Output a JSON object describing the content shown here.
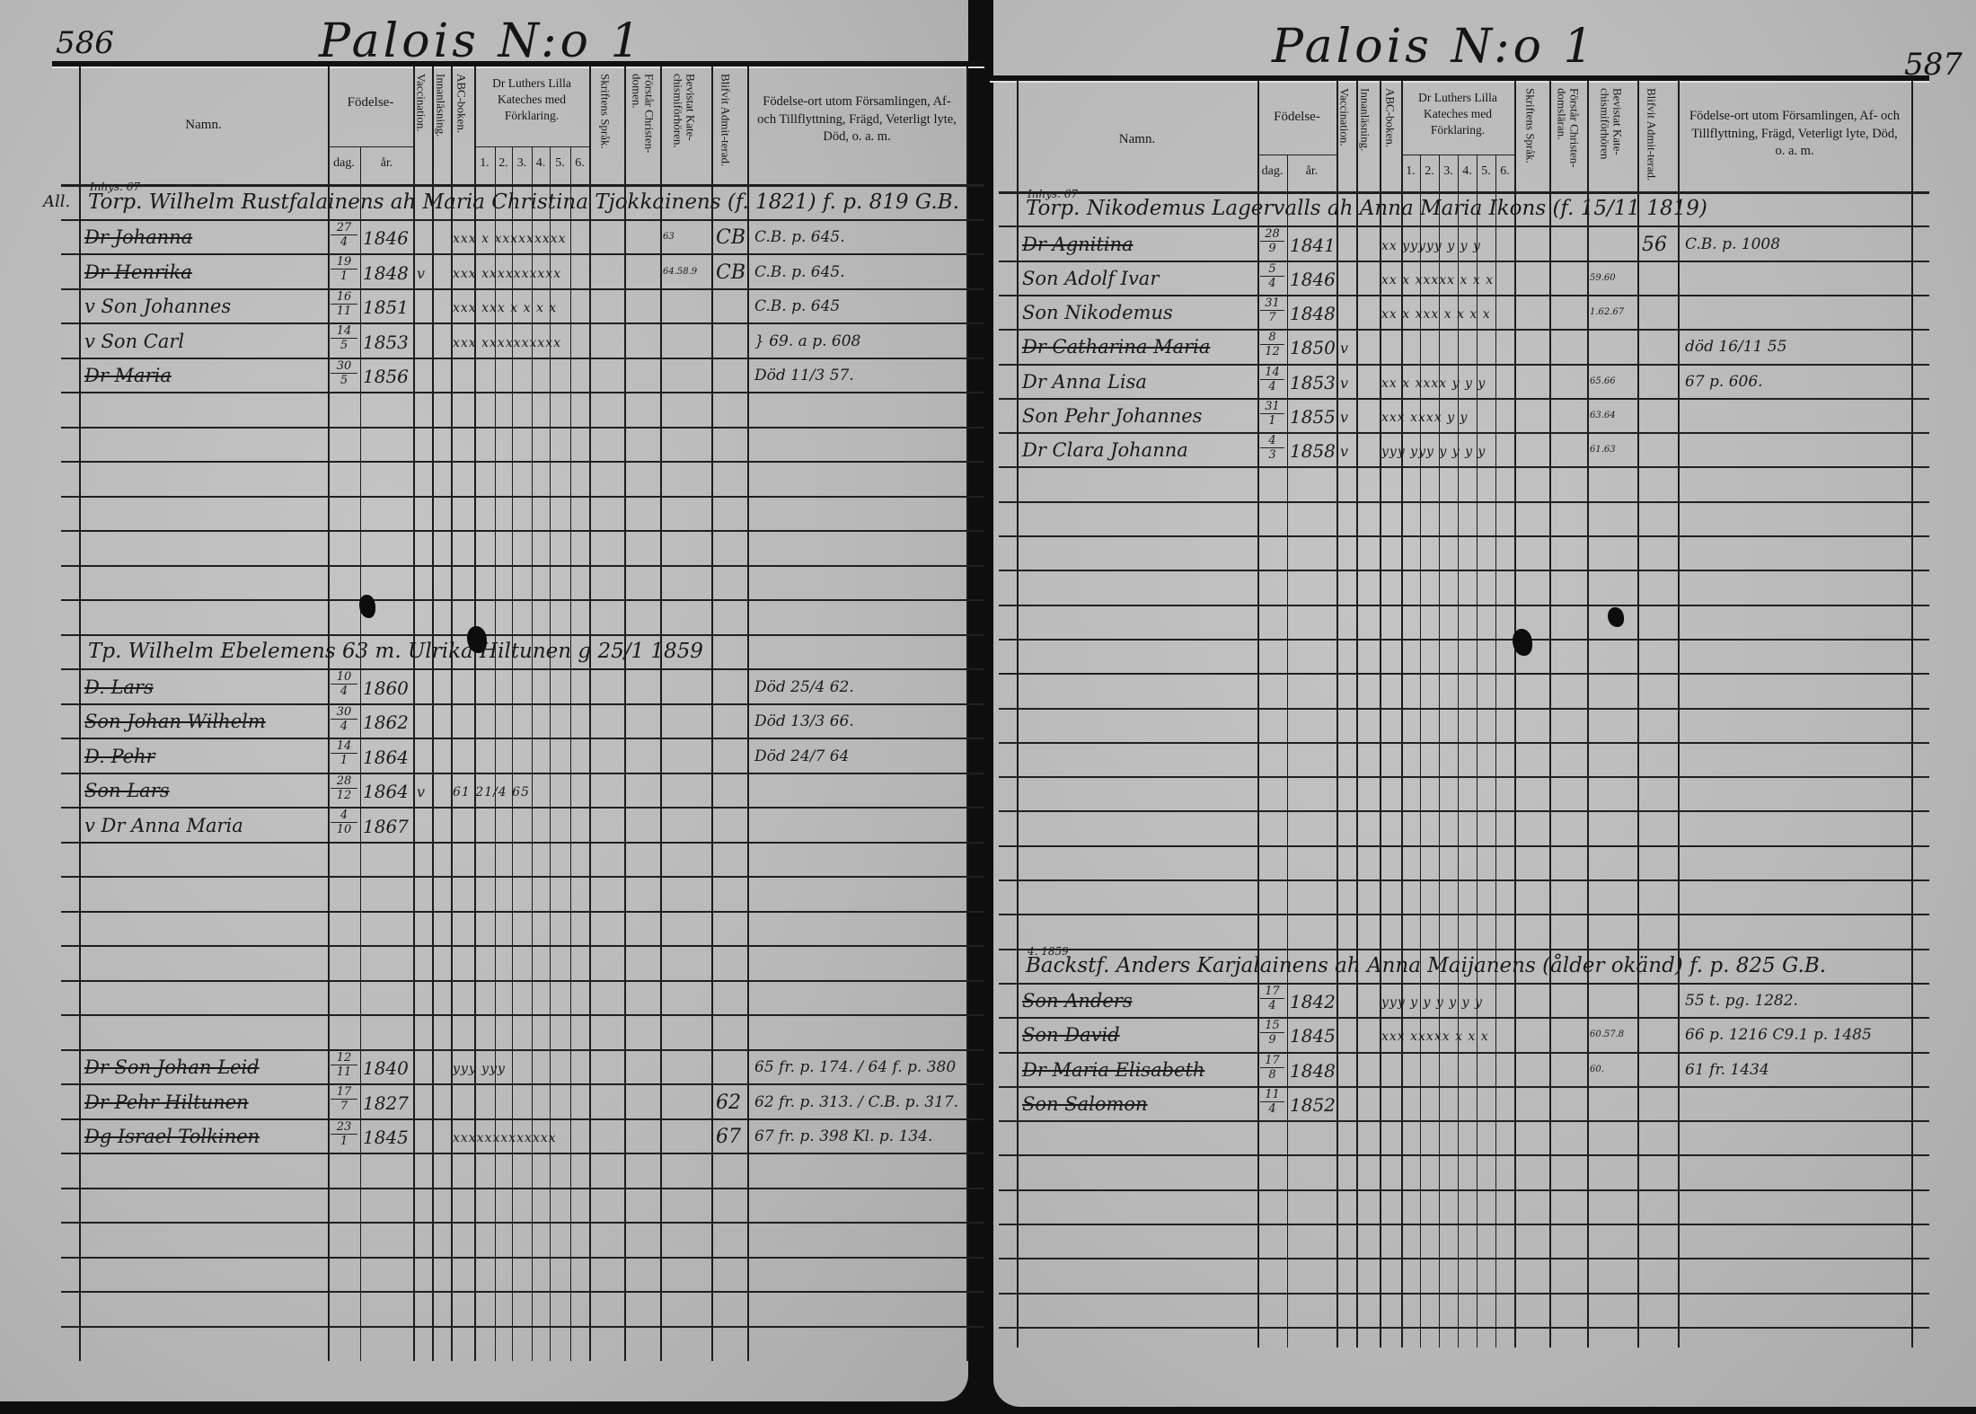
{
  "document": {
    "type": "Parish household examination register (husförhörslängd)",
    "accent_color": "#1a1a1a",
    "paper_color": "#bcbcbc"
  },
  "pages": [
    {
      "page_number": "586",
      "title": "Palois N:o 1",
      "headers": {
        "namn": "Namn.",
        "fodelse": "Födelse-",
        "dag": "dag.",
        "ar": "år.",
        "vaccination": "Vaccination.",
        "innanlasning": "Innanläsning.",
        "abc": "ABC-boken.",
        "luther": "Dr Luthers Lilla Kateches med Förklaring.",
        "luther_nums": [
          "1.",
          "2.",
          "3.",
          "4.",
          "5.",
          "6."
        ],
        "skriftens": "Skriftens Språk.",
        "forstar": "Förstår Christen-domen.",
        "bevistat": "Bevistat Kate-chismiförhören.",
        "admitterad": "Blifvit Admit-terad.",
        "fodelseort": "Födelse-ort utom Församlingen, Af- och Tillflyttning, Frägd, Veterligt lyte, Död, o. a. m."
      },
      "households": [
        {
          "note": "Inhys. 67",
          "prefix": "All.",
          "text": "Torp. Wilhelm Rustfalainens ah Maria Christina Tjokkainens (f. 1821) f. p. 819 G.B.",
          "struck_prefix": "Torp."
        },
        {
          "note": "",
          "prefix": "",
          "text": "Tp. Wilhelm Ebelemens 63 m. Ulrika Hiltunen g 25/1 1859",
          "struck_prefix": ""
        }
      ],
      "entries": [
        {
          "name": "Dr Johanna",
          "struck": true,
          "day": "27",
          "month": "4",
          "year": "1846",
          "vacc": "",
          "marks": "xxx x xxxxxxxxx",
          "bevistat": "63",
          "admit": "CB",
          "notes": "C.B. p. 645."
        },
        {
          "name": "Dr Henrika",
          "struck": true,
          "day": "19",
          "month": "1",
          "year": "1848",
          "vacc": "v",
          "marks": "xxx xxxxxxxxxx",
          "bevistat": "64.58.9",
          "admit": "CB",
          "notes": "C.B. p. 645."
        },
        {
          "name": "v Son Johannes",
          "struck": false,
          "day": "16",
          "month": "11",
          "year": "1851",
          "vacc": "",
          "marks": "xxx xxx x x x x",
          "bevistat": "",
          "admit": "",
          "notes": "C.B. p. 645"
        },
        {
          "name": "v Son Carl",
          "struck": false,
          "day": "14",
          "month": "5",
          "year": "1853",
          "vacc": "",
          "marks": "xxx xxxxxxxxxx",
          "bevistat": "",
          "admit": "",
          "notes": "} 69. a p. 608"
        },
        {
          "name": "Dr Maria",
          "struck": true,
          "day": "30",
          "month": "5",
          "year": "1856",
          "vacc": "",
          "marks": "",
          "bevistat": "",
          "admit": "",
          "notes": "Död 11/3 57."
        },
        {
          "name": "D. Lars",
          "struck": true,
          "day": "10",
          "month": "4",
          "year": "1860",
          "vacc": "",
          "marks": "",
          "bevistat": "",
          "admit": "",
          "notes": "Död 25/4 62."
        },
        {
          "name": "Son Johan Wilhelm",
          "struck": true,
          "day": "30",
          "month": "4",
          "year": "1862",
          "vacc": "",
          "marks": "",
          "bevistat": "",
          "admit": "",
          "notes": "Död 13/3 66."
        },
        {
          "name": "D. Pehr",
          "struck": true,
          "day": "14",
          "month": "1",
          "year": "1864",
          "vacc": "",
          "marks": "",
          "bevistat": "",
          "admit": "",
          "notes": "Död 24/7 64"
        },
        {
          "name": "Son Lars",
          "struck": true,
          "day": "28",
          "month": "12",
          "year": "1864",
          "vacc": "v",
          "marks": "61 21/4 65",
          "bevistat": "",
          "admit": "",
          "notes": ""
        },
        {
          "name": "v Dr Anna Maria",
          "struck": false,
          "day": "4",
          "month": "10",
          "year": "1867",
          "vacc": "",
          "marks": "",
          "bevistat": "",
          "admit": "",
          "notes": ""
        },
        {
          "name": "Dr Son Johan Leid",
          "struck": true,
          "day": "12",
          "month": "11",
          "year": "1840",
          "vacc": "",
          "marks": "yyy yyy",
          "bevistat": "",
          "admit": "",
          "notes": "65 fr. p. 174. / 64 f. p. 380"
        },
        {
          "name": "Dr Pehr Hiltunen",
          "struck": true,
          "day": "17",
          "month": "7",
          "year": "1827",
          "vacc": "",
          "marks": "",
          "bevistat": "",
          "admit": "62",
          "notes": "62 fr. p. 313. / C.B. p. 317."
        },
        {
          "name": "Dg Israel Tolkinen",
          "struck": true,
          "day": "23",
          "month": "1",
          "year": "1845",
          "vacc": "",
          "marks": "xxxxxxxxxxxxx",
          "bevistat": "",
          "admit": "67",
          "notes": "67 fr. p. 398 Kl. p. 134."
        }
      ]
    },
    {
      "page_number": "587",
      "title": "Palois N:o 1",
      "headers": {
        "namn": "Namn.",
        "fodelse": "Födelse-",
        "dag": "dag.",
        "ar": "år.",
        "vaccination": "Vaccination.",
        "innanlasning": "Innanläsning.",
        "abc": "ABC-boken.",
        "luther": "Dr Luthers Lilla Kateches med Förklaring.",
        "luther_nums": [
          "1.",
          "2.",
          "3.",
          "4.",
          "5.",
          "6."
        ],
        "skriftens": "Skriftens Språk.",
        "forstar": "Förstår Christen-domsläran.",
        "bevistat": "Bevistat Kate-chismiförhören",
        "admitterad": "Blifvit Admit-terad.",
        "fodelseort": "Födelse-ort utom Församlingen, Af- och Tillflyttning, Frägd, Veterligt lyte, Död, o. a. m."
      },
      "households": [
        {
          "note": "Inhys. 67",
          "prefix": "",
          "text": "Torp. Nikodemus Lagervalls ah Anna Maria Ikons (f. 15/11 1819)",
          "struck_prefix": "Torp."
        },
        {
          "note": "4. 1859",
          "prefix": "",
          "text": "Backstf. Anders Karjalainens ah Anna Maijanens (ålder okänd) f. p. 825 G.B.",
          "struck_prefix": ""
        }
      ],
      "entries": [
        {
          "name": "Dr Agnitina",
          "struck": true,
          "day": "28",
          "month": "9",
          "year": "1841",
          "vacc": "",
          "marks": "xx yyyyy y y y",
          "bevistat": "",
          "admit": "56",
          "notes": "C.B. p. 1008"
        },
        {
          "name": "Son Adolf Ivar",
          "struck": false,
          "day": "5",
          "month": "4",
          "year": "1846",
          "vacc": "",
          "marks": "xx x xxxxx x x x",
          "bevistat": "59.60",
          "admit": "",
          "notes": ""
        },
        {
          "name": "Son Nikodemus",
          "struck": false,
          "day": "31",
          "month": "7",
          "year": "1848",
          "vacc": "",
          "marks": "xx x xxx x x x x",
          "bevistat": "1.62.67",
          "admit": "",
          "notes": ""
        },
        {
          "name": "Dr Catharina Maria",
          "struck": true,
          "day": "8",
          "month": "12",
          "year": "1850",
          "vacc": "v",
          "marks": "",
          "bevistat": "",
          "admit": "",
          "notes": "död 16/11 55"
        },
        {
          "name": "Dr Anna Lisa",
          "struck": false,
          "day": "14",
          "month": "4",
          "year": "1853",
          "vacc": "v",
          "marks": "xx x xxxx y y y",
          "bevistat": "65.66",
          "admit": "",
          "notes": "67 p. 606."
        },
        {
          "name": "Son Pehr Johannes",
          "struck": false,
          "day": "31",
          "month": "1",
          "year": "1855",
          "vacc": "v",
          "marks": "xxx xxxx y y",
          "bevistat": "63.64",
          "admit": "",
          "notes": ""
        },
        {
          "name": "Dr Clara Johanna",
          "struck": false,
          "day": "4",
          "month": "3",
          "year": "1858",
          "vacc": "v",
          "marks": "yyy yyy y y y y",
          "bevistat": "61.63",
          "admit": "",
          "notes": ""
        },
        {
          "name": "Son Anders",
          "struck": true,
          "day": "17",
          "month": "4",
          "year": "1842",
          "vacc": "",
          "marks": "yyy y y y y y y",
          "bevistat": "",
          "admit": "",
          "notes": "55 t. pg. 1282."
        },
        {
          "name": "Son David",
          "struck": true,
          "day": "15",
          "month": "9",
          "year": "1845",
          "vacc": "",
          "marks": "xxx xxxxx x x x",
          "bevistat": "60.57.8",
          "admit": "",
          "notes": "66 p. 1216 C9.1 p. 1485"
        },
        {
          "name": "Dr Maria Elisabeth",
          "struck": true,
          "day": "17",
          "month": "8",
          "year": "1848",
          "vacc": "",
          "marks": "",
          "bevistat": "60.",
          "admit": "",
          "notes": "61 fr. 1434"
        },
        {
          "name": "Son Salomon",
          "struck": true,
          "day": "11",
          "month": "4",
          "year": "1852",
          "vacc": "",
          "marks": "",
          "bevistat": "",
          "admit": "",
          "notes": ""
        }
      ]
    }
  ]
}
